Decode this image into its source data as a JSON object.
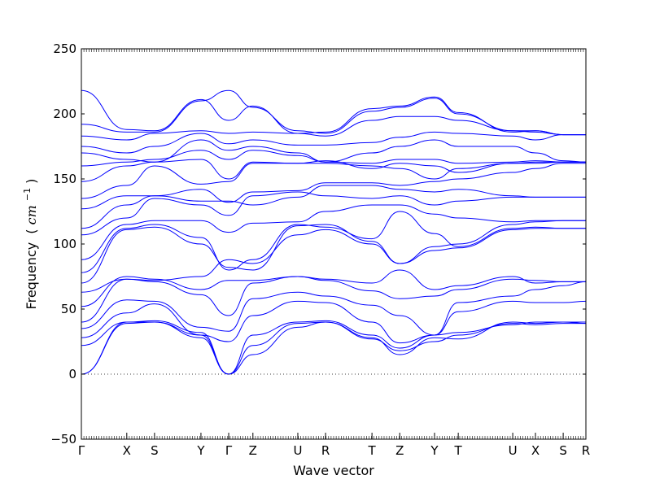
{
  "chart_data": {
    "type": "line",
    "xlabel": "Wave vector",
    "ylabel": {
      "text": "Frequency",
      "unit_open": "(",
      "unit_base": "cm",
      "unit_exponent": "−1",
      "unit_close": ")"
    },
    "ylim": [
      -50,
      250
    ],
    "yticks": [
      -50,
      0,
      50,
      100,
      150,
      200,
      250
    ],
    "xlim": [
      0,
      1
    ],
    "zero_line": {
      "y": 0,
      "style": "dotted"
    },
    "grid": false,
    "legend": "none",
    "line_color": "#0000ff",
    "high_symmetry_points": [
      {
        "label": "Γ",
        "x": 0.0
      },
      {
        "label": "X",
        "x": 0.09
      },
      {
        "label": "S",
        "x": 0.145
      },
      {
        "label": "Y",
        "x": 0.237
      },
      {
        "label": "Γ",
        "x": 0.292
      },
      {
        "label": "Z",
        "x": 0.34
      },
      {
        "label": "U",
        "x": 0.429
      },
      {
        "label": "R",
        "x": 0.484
      },
      {
        "label": "T",
        "x": 0.576
      },
      {
        "label": "Z",
        "x": 0.631
      },
      {
        "label": "Y",
        "x": 0.7
      },
      {
        "label": "T",
        "x": 0.747
      },
      {
        "label": "U",
        "x": 0.855
      },
      {
        "label": "X",
        "x": 0.9
      },
      {
        "label": "S",
        "x": 0.955
      },
      {
        "label": "R",
        "x": 1.0
      }
    ],
    "bands": [
      [
        0,
        40,
        40,
        28,
        0,
        22,
        39,
        40,
        28,
        15,
        28,
        27,
        40,
        39,
        40,
        39
      ],
      [
        0,
        39,
        40,
        30,
        0,
        15,
        36,
        40,
        27,
        18,
        25,
        30,
        39,
        38,
        39,
        39
      ],
      [
        22,
        40,
        41,
        32,
        0,
        30,
        40,
        41,
        30,
        20,
        30,
        32,
        38,
        40,
        40,
        40
      ],
      [
        28,
        47,
        54,
        30,
        25,
        45,
        56,
        55,
        40,
        24,
        30,
        48,
        56,
        55,
        55,
        56
      ],
      [
        35,
        57,
        56,
        36,
        33,
        58,
        63,
        60,
        53,
        45,
        30,
        55,
        60,
        65,
        68,
        71
      ],
      [
        40,
        73,
        71,
        61,
        45,
        70,
        75,
        72,
        64,
        58,
        60,
        65,
        73,
        72,
        71,
        71
      ],
      [
        52,
        75,
        73,
        65,
        72,
        72,
        75,
        73,
        70,
        80,
        65,
        68,
        75,
        70,
        71,
        71
      ],
      [
        63,
        73,
        72,
        75,
        88,
        85,
        107,
        111,
        100,
        85,
        95,
        97,
        111,
        112,
        112,
        112
      ],
      [
        70,
        111,
        113,
        100,
        82,
        80,
        114,
        115,
        102,
        85,
        98,
        100,
        115,
        117,
        118,
        118
      ],
      [
        78,
        112,
        115,
        105,
        80,
        88,
        115,
        113,
        104,
        125,
        108,
        98,
        112,
        113,
        112,
        112
      ],
      [
        88,
        115,
        118,
        118,
        109,
        116,
        117,
        125,
        130,
        130,
        123,
        120,
        117,
        118,
        118,
        118
      ],
      [
        107,
        120,
        135,
        130,
        122,
        137,
        140,
        137,
        135,
        137,
        130,
        133,
        136,
        136,
        136,
        136
      ],
      [
        112,
        130,
        137,
        133,
        133,
        130,
        136,
        145,
        145,
        142,
        140,
        142,
        137,
        136,
        136,
        136
      ],
      [
        127,
        137,
        137,
        142,
        132,
        140,
        141,
        147,
        147,
        145,
        148,
        150,
        155,
        158,
        162,
        162
      ],
      [
        135,
        145,
        160,
        146,
        148,
        162,
        162,
        162,
        160,
        158,
        150,
        158,
        162,
        162,
        163,
        163
      ],
      [
        148,
        160,
        163,
        165,
        150,
        163,
        162,
        164,
        158,
        162,
        160,
        155,
        162,
        163,
        163,
        163
      ],
      [
        160,
        163,
        165,
        172,
        165,
        172,
        168,
        163,
        162,
        165,
        165,
        162,
        163,
        164,
        163,
        163
      ],
      [
        170,
        165,
        163,
        180,
        172,
        175,
        170,
        163,
        170,
        175,
        180,
        175,
        175,
        170,
        164,
        163
      ],
      [
        175,
        170,
        175,
        185,
        177,
        180,
        176,
        176,
        178,
        182,
        186,
        185,
        183,
        180,
        184,
        184
      ],
      [
        183,
        180,
        185,
        187,
        185,
        186,
        185,
        183,
        195,
        198,
        198,
        195,
        187,
        186,
        184,
        184
      ],
      [
        192,
        186,
        186,
        210,
        218,
        205,
        187,
        185,
        202,
        205,
        212,
        200,
        187,
        187,
        184,
        184
      ],
      [
        218,
        188,
        187,
        211,
        195,
        206,
        185,
        186,
        204,
        206,
        213,
        201,
        186,
        187,
        184,
        184
      ]
    ]
  }
}
